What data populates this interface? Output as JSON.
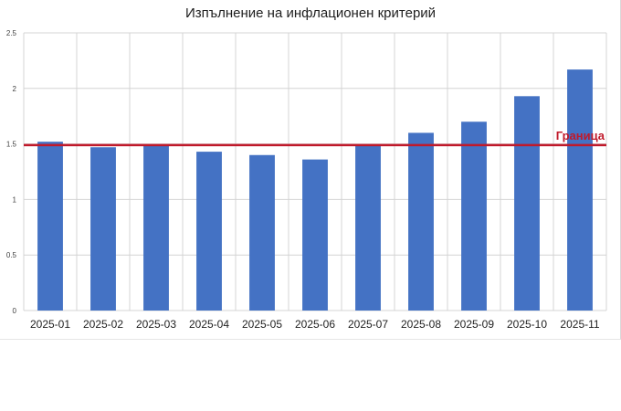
{
  "chart_data": {
    "type": "bar",
    "title": "Изпълнение на инфлационен критерий",
    "xlabel": "",
    "ylabel": "",
    "categories": [
      "2025-01",
      "2025-02",
      "2025-03",
      "2025-04",
      "2025-05",
      "2025-06",
      "2025-07",
      "2025-08",
      "2025-09",
      "2025-10",
      "2025-11"
    ],
    "values": [
      1.52,
      1.47,
      1.49,
      1.43,
      1.4,
      1.36,
      1.49,
      1.6,
      1.7,
      1.93,
      2.17
    ],
    "ylim": [
      0,
      2.5
    ],
    "yticks": [
      0,
      0.5,
      1,
      1.5,
      2,
      2.5
    ],
    "ytick_labels": [
      "0",
      "0.5",
      "1",
      "1.5",
      "2",
      "2.5"
    ],
    "grid": true,
    "bar_color": "#4472c4",
    "threshold": {
      "value": 1.49,
      "label": "Граница",
      "color": "#c0192a"
    }
  }
}
